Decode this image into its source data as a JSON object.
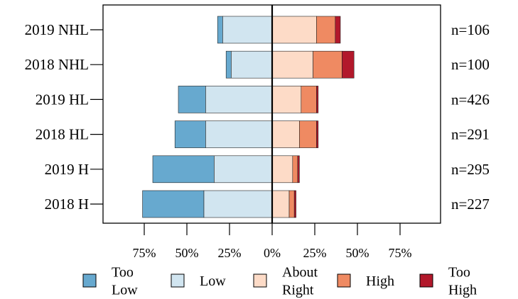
{
  "chart_data": {
    "type": "bar",
    "orientation": "horizontal",
    "stacking": "diverging",
    "categories": [
      "2019 NHL",
      "2018 NHL",
      "2019 HL",
      "2018 HL",
      "2019 H",
      "2018 H"
    ],
    "counts": [
      "n=106",
      "n=100",
      "n=426",
      "n=291",
      "n=295",
      "n=227"
    ],
    "series": [
      {
        "name": "Too Low",
        "name_lines": [
          "Too",
          "Low"
        ],
        "color": "#67a9cf",
        "values": [
          -3,
          -3,
          -16,
          -18,
          -36,
          -36
        ]
      },
      {
        "name": "Low",
        "name_lines": [
          "Low"
        ],
        "color": "#d1e5f0",
        "values": [
          -29,
          -24,
          -39,
          -39,
          -34,
          -40
        ]
      },
      {
        "name": "About Right",
        "name_lines": [
          "About",
          "Right"
        ],
        "color": "#fddbc7",
        "values": [
          26,
          24,
          17,
          16,
          12,
          10
        ]
      },
      {
        "name": "High",
        "name_lines": [
          "High"
        ],
        "color": "#ef8a62",
        "values": [
          11,
          17,
          9,
          10,
          3,
          3
        ]
      },
      {
        "name": "Too High",
        "name_lines": [
          "Too",
          "High"
        ],
        "color": "#b2182b",
        "values": [
          3,
          7,
          1,
          1,
          1,
          1
        ]
      }
    ],
    "xlim": [
      -100,
      100
    ],
    "xticks": [
      -75,
      -50,
      -25,
      0,
      25,
      50,
      75
    ],
    "xtick_labels": [
      "75%",
      "50%",
      "25%",
      "0%",
      "25%",
      "50%",
      "75%"
    ],
    "legend_position": "bottom",
    "grid": false
  }
}
